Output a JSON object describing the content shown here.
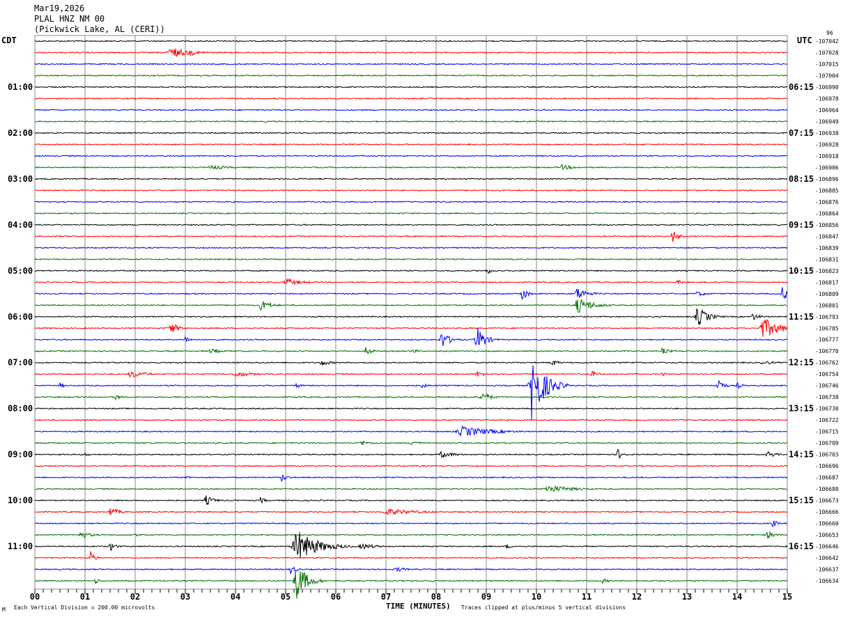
{
  "header": {
    "date": "Mar19,2026",
    "station": "PLAL HNZ NM 00",
    "location": "(Pickwick Lake, AL (CERI))"
  },
  "left_tz": "CDT",
  "right_tz": "UTC",
  "right_corner": "96",
  "footer": {
    "scale": "Each Vertical Division =  200.00 microvolts",
    "xlabel": "TIME (MINUTES)",
    "clip_note": "Traces clipped at plus/minus 5 vertical divisions",
    "corner_mark": "M"
  },
  "chart_data": {
    "type": "line",
    "subtype": "helicorder",
    "xlabel": "TIME (MINUTES)",
    "xlim": [
      0,
      15
    ],
    "x_ticks": [
      "00",
      "01",
      "02",
      "03",
      "04",
      "05",
      "06",
      "07",
      "08",
      "09",
      "10",
      "11",
      "12",
      "13",
      "14",
      "15"
    ],
    "grid": true,
    "trace_colors": [
      "#000000",
      "#ff0000",
      "#0000ff",
      "#007000"
    ],
    "left_hour_labels": [
      {
        "row": 4,
        "text": "01:00"
      },
      {
        "row": 8,
        "text": "02:00"
      },
      {
        "row": 12,
        "text": "03:00"
      },
      {
        "row": 16,
        "text": "04:00"
      },
      {
        "row": 20,
        "text": "05:00"
      },
      {
        "row": 24,
        "text": "06:00"
      },
      {
        "row": 28,
        "text": "07:00"
      },
      {
        "row": 32,
        "text": "08:00"
      },
      {
        "row": 36,
        "text": "09:00"
      },
      {
        "row": 40,
        "text": "10:00"
      },
      {
        "row": 44,
        "text": "11:00"
      }
    ],
    "right_hour_labels": [
      {
        "row": 4,
        "text": "06:15"
      },
      {
        "row": 8,
        "text": "07:15"
      },
      {
        "row": 12,
        "text": "08:15"
      },
      {
        "row": 16,
        "text": "09:15"
      },
      {
        "row": 20,
        "text": "10:15"
      },
      {
        "row": 24,
        "text": "11:15"
      },
      {
        "row": 28,
        "text": "12:15"
      },
      {
        "row": 32,
        "text": "13:15"
      },
      {
        "row": 36,
        "text": "14:15"
      },
      {
        "row": 40,
        "text": "15:15"
      },
      {
        "row": 44,
        "text": "16:15"
      }
    ],
    "row_values": [
      "-107042",
      "-107028",
      "-107015",
      "-107004",
      "-106990",
      "-106978",
      "-106964",
      "-106949",
      "-106938",
      "-106928",
      "-106918",
      "-106906",
      "-106896",
      "-106885",
      "-106876",
      "-106864",
      "-106856",
      "-106847",
      "-106839",
      "-106831",
      "-106823",
      "-106817",
      "-106809",
      "-106801",
      "-106793",
      "-106785",
      "-106777",
      "-106770",
      "-106762",
      "-106754",
      "-106746",
      "-106738",
      "-106730",
      "-106722",
      "-106715",
      "-106709",
      "-106703",
      "-106696",
      "-106687",
      "-106680",
      "-106673",
      "-106666",
      "-106660",
      "-106653",
      "-106646",
      "-106642",
      "-106637",
      "-106634"
    ],
    "events": [
      {
        "row": 1,
        "minute": 2.7,
        "amp": 8,
        "dur": 0.4
      },
      {
        "row": 1,
        "minute": 3.1,
        "amp": 6,
        "dur": 0.1
      },
      {
        "row": 11,
        "minute": 3.5,
        "amp": 4,
        "dur": 0.3
      },
      {
        "row": 11,
        "minute": 10.5,
        "amp": 4,
        "dur": 0.3
      },
      {
        "row": 17,
        "minute": 12.7,
        "amp": 12,
        "dur": 0.1
      },
      {
        "row": 20,
        "minute": 9.0,
        "amp": 6,
        "dur": 0.1
      },
      {
        "row": 21,
        "minute": 5.0,
        "amp": 6,
        "dur": 0.3
      },
      {
        "row": 21,
        "minute": 12.8,
        "amp": 3,
        "dur": 0.2
      },
      {
        "row": 22,
        "minute": 9.7,
        "amp": 12,
        "dur": 0.1
      },
      {
        "row": 22,
        "minute": 10.8,
        "amp": 10,
        "dur": 0.2
      },
      {
        "row": 22,
        "minute": 13.2,
        "amp": 4,
        "dur": 0.2
      },
      {
        "row": 22,
        "minute": 14.9,
        "amp": 10,
        "dur": 0.15
      },
      {
        "row": 23,
        "minute": 4.5,
        "amp": 8,
        "dur": 0.2
      },
      {
        "row": 23,
        "minute": 10.8,
        "amp": 12,
        "dur": 0.3
      },
      {
        "row": 24,
        "minute": 13.2,
        "amp": 16,
        "dur": 0.2
      },
      {
        "row": 24,
        "minute": 14.3,
        "amp": 6,
        "dur": 0.15
      },
      {
        "row": 25,
        "minute": 2.7,
        "amp": 10,
        "dur": 0.15
      },
      {
        "row": 25,
        "minute": 14.5,
        "amp": 16,
        "dur": 0.35
      },
      {
        "row": 26,
        "minute": 3.0,
        "amp": 6,
        "dur": 0.1
      },
      {
        "row": 26,
        "minute": 8.1,
        "amp": 14,
        "dur": 0.15
      },
      {
        "row": 26,
        "minute": 8.8,
        "amp": 22,
        "dur": 0.15
      },
      {
        "row": 27,
        "minute": 3.5,
        "amp": 4,
        "dur": 0.2
      },
      {
        "row": 27,
        "minute": 6.6,
        "amp": 8,
        "dur": 0.1
      },
      {
        "row": 27,
        "minute": 7.5,
        "amp": 4,
        "dur": 0.15
      },
      {
        "row": 27,
        "minute": 12.5,
        "amp": 5,
        "dur": 0.15
      },
      {
        "row": 28,
        "minute": 5.7,
        "amp": 5,
        "dur": 0.2
      },
      {
        "row": 28,
        "minute": 10.3,
        "amp": 5,
        "dur": 0.15
      },
      {
        "row": 28,
        "minute": 14.5,
        "amp": 4,
        "dur": 0.2
      },
      {
        "row": 29,
        "minute": 1.9,
        "amp": 6,
        "dur": 0.3
      },
      {
        "row": 29,
        "minute": 4.0,
        "amp": 5,
        "dur": 0.3
      },
      {
        "row": 29,
        "minute": 8.8,
        "amp": 5,
        "dur": 0.15
      },
      {
        "row": 29,
        "minute": 11.1,
        "amp": 5,
        "dur": 0.15
      },
      {
        "row": 29,
        "minute": 12.5,
        "amp": 3,
        "dur": 0.1
      },
      {
        "row": 30,
        "minute": 0.5,
        "amp": 4,
        "dur": 0.1
      },
      {
        "row": 30,
        "minute": 5.2,
        "amp": 5,
        "dur": 0.1
      },
      {
        "row": 30,
        "minute": 7.7,
        "amp": 4,
        "dur": 0.15
      },
      {
        "row": 30,
        "minute": 9.9,
        "amp": 50,
        "dur": 0.25
      },
      {
        "row": 30,
        "minute": 13.6,
        "amp": 15,
        "dur": 0.1
      },
      {
        "row": 30,
        "minute": 14.0,
        "amp": 5,
        "dur": 0.1
      },
      {
        "row": 31,
        "minute": 1.6,
        "amp": 5,
        "dur": 0.1
      },
      {
        "row": 31,
        "minute": 8.9,
        "amp": 10,
        "dur": 0.15
      },
      {
        "row": 34,
        "minute": 8.5,
        "amp": 8,
        "dur": 0.6
      },
      {
        "row": 35,
        "minute": 6.5,
        "amp": 4,
        "dur": 0.2
      },
      {
        "row": 35,
        "minute": 7.5,
        "amp": 5,
        "dur": 0.15
      },
      {
        "row": 36,
        "minute": 1.0,
        "amp": 3,
        "dur": 0.1
      },
      {
        "row": 36,
        "minute": 8.1,
        "amp": 5,
        "dur": 0.3
      },
      {
        "row": 36,
        "minute": 11.6,
        "amp": 10,
        "dur": 0.1
      },
      {
        "row": 36,
        "minute": 14.6,
        "amp": 6,
        "dur": 0.15
      },
      {
        "row": 38,
        "minute": 3.0,
        "amp": 3,
        "dur": 0.1
      },
      {
        "row": 38,
        "minute": 4.9,
        "amp": 8,
        "dur": 0.1
      },
      {
        "row": 39,
        "minute": 10.2,
        "amp": 6,
        "dur": 0.5
      },
      {
        "row": 40,
        "minute": 3.4,
        "amp": 8,
        "dur": 0.15
      },
      {
        "row": 40,
        "minute": 4.5,
        "amp": 5,
        "dur": 0.1
      },
      {
        "row": 41,
        "minute": 1.5,
        "amp": 8,
        "dur": 0.15
      },
      {
        "row": 41,
        "minute": 7.0,
        "amp": 5,
        "dur": 0.6
      },
      {
        "row": 42,
        "minute": 14.7,
        "amp": 6,
        "dur": 0.1
      },
      {
        "row": 43,
        "minute": 0.9,
        "amp": 6,
        "dur": 0.2
      },
      {
        "row": 43,
        "minute": 2.0,
        "amp": 4,
        "dur": 0.1
      },
      {
        "row": 43,
        "minute": 14.6,
        "amp": 6,
        "dur": 0.15
      },
      {
        "row": 44,
        "minute": 1.5,
        "amp": 8,
        "dur": 0.1
      },
      {
        "row": 44,
        "minute": 5.2,
        "amp": 25,
        "dur": 0.4
      },
      {
        "row": 44,
        "minute": 6.5,
        "amp": 5,
        "dur": 0.3
      },
      {
        "row": 44,
        "minute": 9.4,
        "amp": 4,
        "dur": 0.1
      },
      {
        "row": 45,
        "minute": 1.1,
        "amp": 10,
        "dur": 0.1
      },
      {
        "row": 46,
        "minute": 5.1,
        "amp": 8,
        "dur": 0.1
      },
      {
        "row": 46,
        "minute": 7.2,
        "amp": 4,
        "dur": 0.2
      },
      {
        "row": 47,
        "minute": 1.2,
        "amp": 5,
        "dur": 0.1
      },
      {
        "row": 47,
        "minute": 5.2,
        "amp": 30,
        "dur": 0.2
      },
      {
        "row": 47,
        "minute": 11.3,
        "amp": 4,
        "dur": 0.15
      }
    ]
  }
}
